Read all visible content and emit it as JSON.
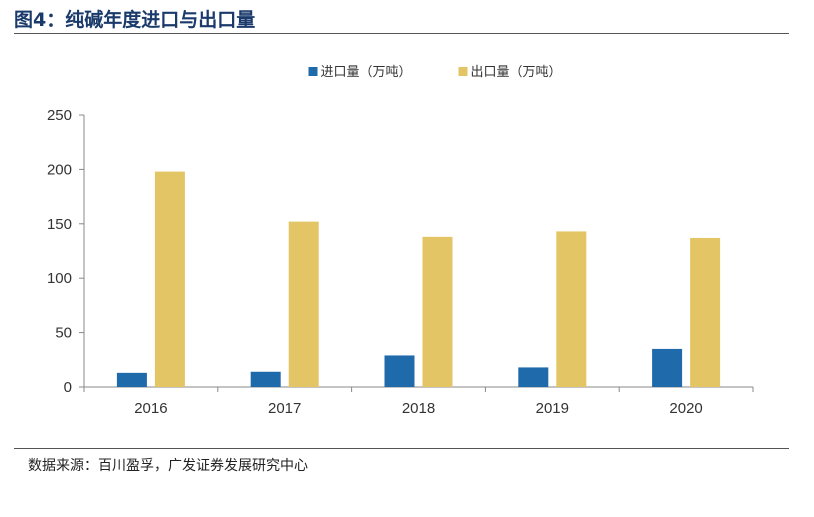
{
  "figure_title": "图4：纯碱年度进口与出口量",
  "source_note": "数据来源：百川盈孚，广发证券发展研究中心",
  "chart_data": {
    "type": "bar",
    "title": "",
    "xlabel": "",
    "ylabel": "",
    "categories": [
      "2016",
      "2017",
      "2018",
      "2019",
      "2020"
    ],
    "ylim": [
      0,
      250
    ],
    "yticks": [
      0,
      50,
      100,
      150,
      200,
      250
    ],
    "grid": false,
    "legend_position": "top-center",
    "series": [
      {
        "name": "进口量（万吨）",
        "color": "#1f6aab",
        "values": [
          13,
          14,
          29,
          18,
          35
        ]
      },
      {
        "name": "出口量（万吨）",
        "color": "#e4c566",
        "values": [
          198,
          152,
          138,
          143,
          137
        ]
      }
    ]
  }
}
